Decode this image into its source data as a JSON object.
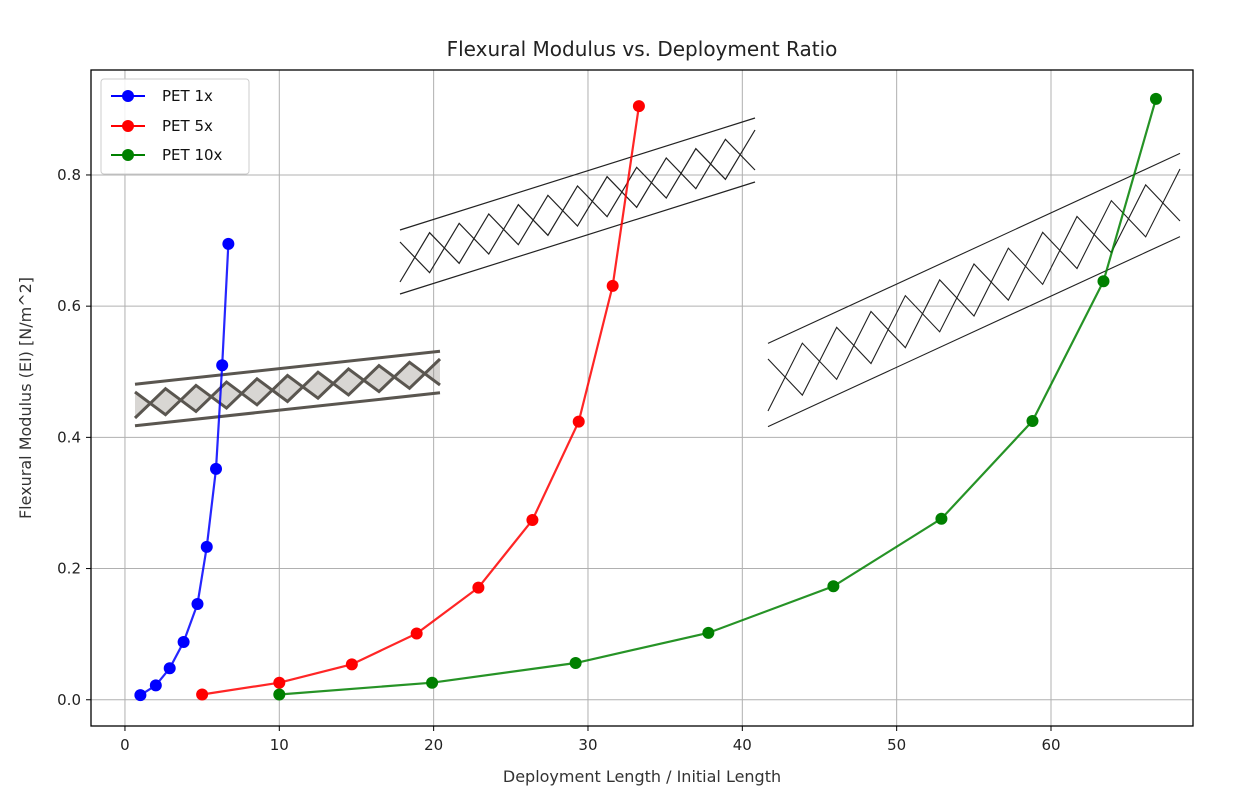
{
  "chart_data": {
    "type": "line",
    "title": "Flexural Modulus vs. Deployment Ratio",
    "xlabel": "Deployment Length / Initial Length",
    "ylabel": "Flexural Modulus (EI) [N/m^2]",
    "xlim": [
      -2.2,
      69.2
    ],
    "ylim": [
      -0.04,
      0.96
    ],
    "xticks": [
      0,
      10,
      20,
      30,
      40,
      50,
      60
    ],
    "yticks": [
      0.0,
      0.2,
      0.4,
      0.6,
      0.8
    ],
    "xtick_labels": [
      "0",
      "10",
      "20",
      "30",
      "40",
      "50",
      "60"
    ],
    "ytick_labels": [
      "0.0",
      "0.2",
      "0.4",
      "0.6",
      "0.8"
    ],
    "grid": true,
    "legend_position": "top-left",
    "series": [
      {
        "name": "PET 1x",
        "color": "#0000ff",
        "x": [
          1.0,
          2.0,
          2.9,
          3.8,
          4.7,
          5.3,
          5.9,
          6.3,
          6.7
        ],
        "y": [
          0.007,
          0.022,
          0.048,
          0.088,
          0.146,
          0.233,
          0.352,
          0.51,
          0.695
        ]
      },
      {
        "name": "PET 5x",
        "color": "#ff0000",
        "x": [
          5.0,
          10.0,
          14.7,
          18.9,
          22.9,
          26.4,
          29.4,
          31.6,
          33.3
        ],
        "y": [
          0.008,
          0.026,
          0.054,
          0.101,
          0.171,
          0.274,
          0.424,
          0.631,
          0.905
        ]
      },
      {
        "name": "PET 10x",
        "color": "#008000",
        "x": [
          10.0,
          19.9,
          29.2,
          37.8,
          45.9,
          52.9,
          58.8,
          63.4,
          66.8
        ],
        "y": [
          0.008,
          0.026,
          0.056,
          0.102,
          0.173,
          0.276,
          0.425,
          0.638,
          0.916
        ]
      }
    ]
  },
  "insets": [
    {
      "description_icon": "lattice-tube-solid-icon"
    },
    {
      "description_icon": "lattice-tube-wireframe-icon"
    },
    {
      "description_icon": "lattice-tube-wireframe-icon"
    }
  ]
}
